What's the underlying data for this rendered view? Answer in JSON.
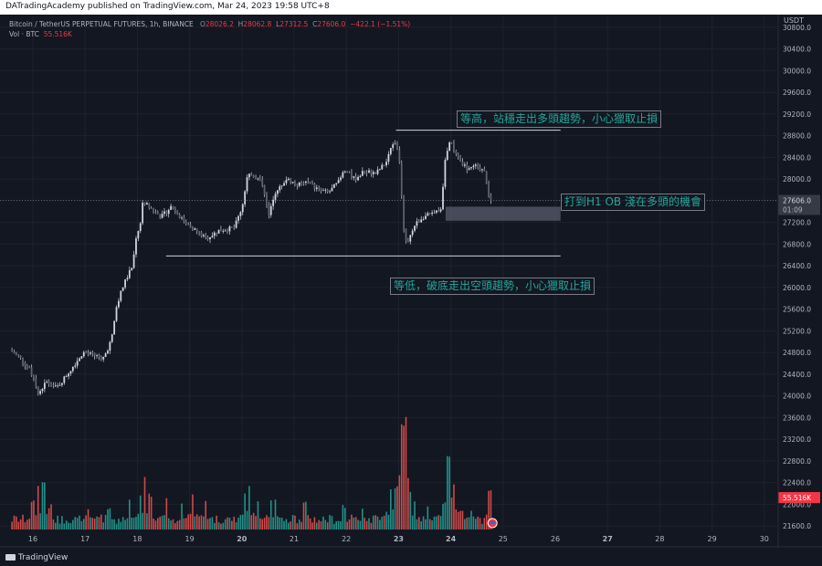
{
  "header": {
    "publisher": "DATradingAcademy published on TradingView.com, Mar 24, 2023 19:58 UTC+8"
  },
  "legend": {
    "symbol": "Bitcoin / TetherUS PERPETUAL FUTURES, 1h, BINANCE",
    "o_label": "O",
    "o_value": "28026.2",
    "h_label": "H",
    "h_value": "28062.8",
    "l_label": "L",
    "l_value": "27312.5",
    "c_label": "C",
    "c_value": "27606.0",
    "change": "−422.1 (−1.51%)",
    "vol_label": "Vol · BTC",
    "vol_value": "55.516K"
  },
  "axis": {
    "currency": "USDT"
  },
  "annotations": {
    "top": "等高，站穩走出多頭趨勢，小心獵取止損",
    "middle": "打到H1 OB 淺在多頭的機會",
    "bottom": "等低，破底走出空頭趨勢，小心獵取止損"
  },
  "footer": {
    "brand": "TradingView"
  },
  "chart_data": {
    "type": "candlestick",
    "colors": {
      "up": "#26a69a",
      "down": "#ef5350",
      "background": "#131722",
      "label": "#f23645"
    },
    "current_price": {
      "value": 27606.0,
      "label": "27606.0",
      "countdown": "01:09"
    },
    "current_volume": {
      "value": 55516,
      "label": "55.516K"
    },
    "y_axis": {
      "ylim": [
        21500,
        31000
      ],
      "ticks": [
        "21600.0",
        "22000.0",
        "22400.0",
        "22800.0",
        "23200.0",
        "23600.0",
        "24000.0",
        "24400.0",
        "24800.0",
        "25200.0",
        "25600.0",
        "26000.0",
        "26400.0",
        "26800.0",
        "27200.0",
        "27600.0",
        "28000.0",
        "28400.0",
        "28800.0",
        "29200.0",
        "29600.0",
        "30000.0",
        "30400.0",
        "30800.0"
      ]
    },
    "x_axis": {
      "day_labels": [
        "16",
        "17",
        "18",
        "19",
        "20",
        "21",
        "22",
        "23",
        "24",
        "25",
        "26",
        "27",
        "28",
        "29",
        "30"
      ],
      "bold_labels": [
        "20",
        "23",
        "24",
        "27"
      ],
      "first_day": 16,
      "last_day": 30
    },
    "levels": {
      "equal_high": {
        "price": 28900,
        "from_day": 22.95,
        "to_day": 26.1
      },
      "equal_low": {
        "price": 26580,
        "from_day": 18.55,
        "to_day": 26.1
      },
      "order_block": {
        "top": 27490,
        "bottom": 27230,
        "from_day": 23.9,
        "to_day": 26.1
      }
    },
    "price_anchors": [
      [
        15.6,
        24850
      ],
      [
        15.8,
        24700
      ],
      [
        16.0,
        24450
      ],
      [
        16.15,
        24050
      ],
      [
        16.3,
        24250
      ],
      [
        16.5,
        24150
      ],
      [
        16.7,
        24400
      ],
      [
        16.85,
        24600
      ],
      [
        17.0,
        24800
      ],
      [
        17.2,
        24750
      ],
      [
        17.4,
        24700
      ],
      [
        17.55,
        25050
      ],
      [
        17.65,
        25700
      ],
      [
        17.8,
        26100
      ],
      [
        17.95,
        26400
      ],
      [
        18.0,
        26800
      ],
      [
        18.1,
        27200
      ],
      [
        18.15,
        27600
      ],
      [
        18.3,
        27450
      ],
      [
        18.5,
        27300
      ],
      [
        18.7,
        27500
      ],
      [
        18.9,
        27250
      ],
      [
        19.1,
        27100
      ],
      [
        19.35,
        26900
      ],
      [
        19.6,
        27050
      ],
      [
        19.9,
        27100
      ],
      [
        20.05,
        27500
      ],
      [
        20.15,
        28100
      ],
      [
        20.3,
        28050
      ],
      [
        20.45,
        27900
      ],
      [
        20.55,
        27300
      ],
      [
        20.7,
        27800
      ],
      [
        20.9,
        28000
      ],
      [
        21.1,
        27900
      ],
      [
        21.3,
        27950
      ],
      [
        21.5,
        27800
      ],
      [
        21.7,
        27750
      ],
      [
        21.9,
        27950
      ],
      [
        22.0,
        28150
      ],
      [
        22.2,
        28000
      ],
      [
        22.4,
        28150
      ],
      [
        22.6,
        28100
      ],
      [
        22.8,
        28300
      ],
      [
        22.9,
        28550
      ],
      [
        22.95,
        28750
      ],
      [
        23.05,
        28450
      ],
      [
        23.15,
        27000
      ],
      [
        23.22,
        26800
      ],
      [
        23.35,
        27150
      ],
      [
        23.5,
        27300
      ],
      [
        23.7,
        27350
      ],
      [
        23.85,
        27450
      ],
      [
        23.95,
        28500
      ],
      [
        24.05,
        28700
      ],
      [
        24.15,
        28400
      ],
      [
        24.35,
        28200
      ],
      [
        24.55,
        28250
      ],
      [
        24.7,
        28100
      ],
      [
        24.78,
        27606
      ]
    ],
    "volume_spikes": [
      [
        16.0,
        0.23
      ],
      [
        16.1,
        0.28
      ],
      [
        16.2,
        0.32
      ],
      [
        16.35,
        0.16
      ],
      [
        17.05,
        0.13
      ],
      [
        17.45,
        0.16
      ],
      [
        17.85,
        0.2
      ],
      [
        18.05,
        0.28
      ],
      [
        18.15,
        0.34
      ],
      [
        18.25,
        0.24
      ],
      [
        18.55,
        0.22
      ],
      [
        18.85,
        0.18
      ],
      [
        19.05,
        0.26
      ],
      [
        19.3,
        0.2
      ],
      [
        20.05,
        0.24
      ],
      [
        20.15,
        0.32
      ],
      [
        20.3,
        0.2
      ],
      [
        20.55,
        0.25
      ],
      [
        20.65,
        0.2
      ],
      [
        21.2,
        0.18
      ],
      [
        21.95,
        0.17
      ],
      [
        22.3,
        0.15
      ],
      [
        22.85,
        0.28
      ],
      [
        22.95,
        0.3
      ],
      [
        23.05,
        0.75
      ],
      [
        23.12,
        0.86
      ],
      [
        23.3,
        0.2
      ],
      [
        23.55,
        0.15
      ],
      [
        23.85,
        0.22
      ],
      [
        23.95,
        0.6
      ],
      [
        24.05,
        0.3
      ],
      [
        24.2,
        0.15
      ],
      [
        24.4,
        0.12
      ],
      [
        24.75,
        0.25
      ]
    ]
  }
}
